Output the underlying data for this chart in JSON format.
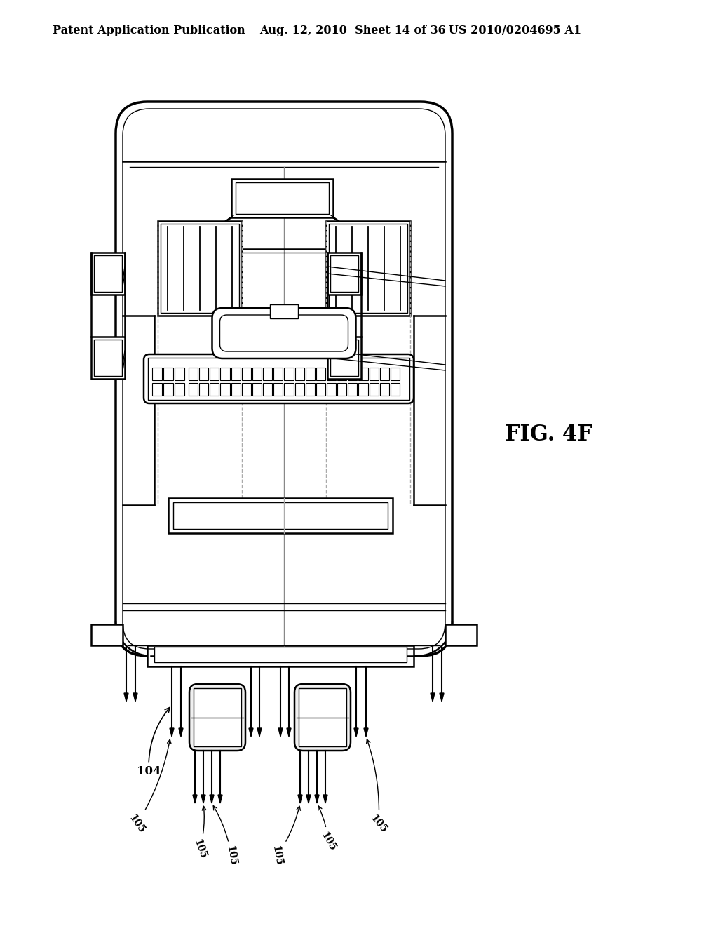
{
  "header_left": "Patent Application Publication",
  "header_mid": "Aug. 12, 2010  Sheet 14 of 36",
  "header_right": "US 2010/0204695 A1",
  "fig_label": "FIG. 4F",
  "label_104": "104",
  "label_105": "105",
  "bg_color": "#ffffff",
  "line_color": "#000000",
  "fig_label_fontsize": 22,
  "header_fontsize": 11.5
}
